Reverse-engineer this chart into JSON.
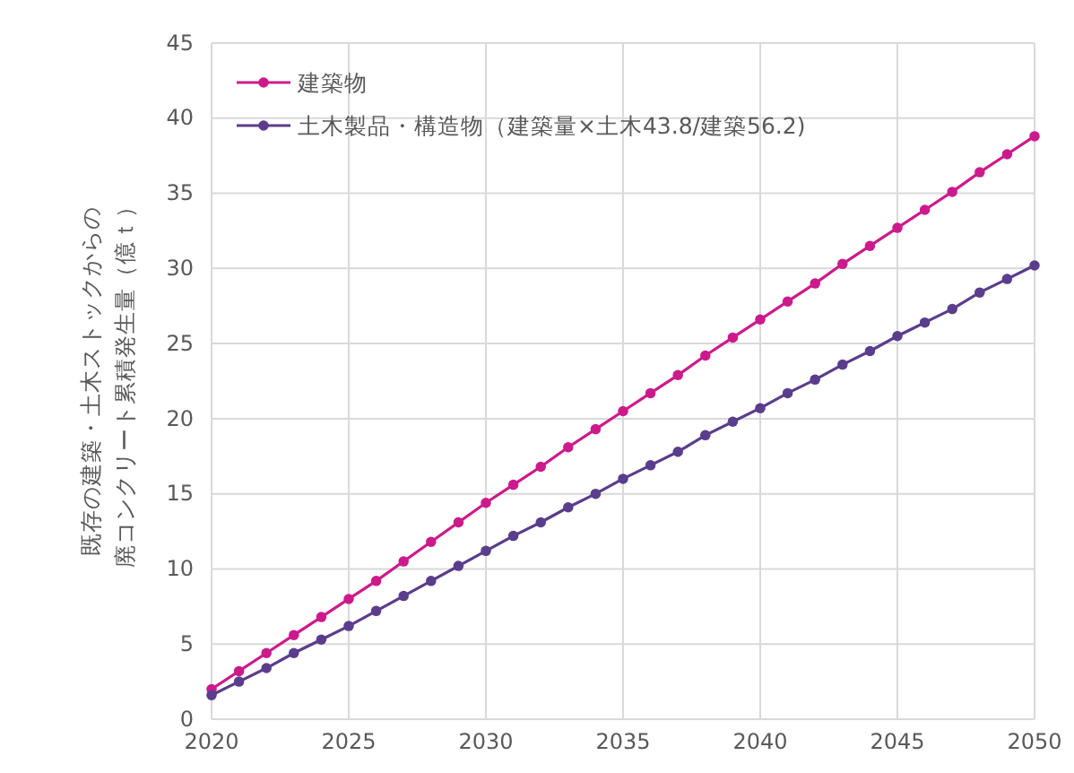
{
  "chart_data": {
    "type": "line",
    "ylabel": "既存の建築・土木ストックからの廃コンクリート累積発生量（億ｔ）",
    "x": [
      2020,
      2021,
      2022,
      2023,
      2024,
      2025,
      2026,
      2027,
      2028,
      2029,
      2030,
      2031,
      2032,
      2033,
      2034,
      2035,
      2036,
      2037,
      2038,
      2039,
      2040,
      2041,
      2042,
      2043,
      2044,
      2045,
      2046,
      2047,
      2048,
      2049,
      2050
    ],
    "series": [
      {
        "name": "建築物",
        "color": "#cc1a8c",
        "values": [
          2.0,
          3.2,
          4.4,
          5.6,
          6.8,
          8.0,
          9.2,
          10.5,
          11.8,
          13.1,
          14.4,
          15.6,
          16.8,
          18.1,
          19.3,
          20.5,
          21.7,
          22.9,
          24.2,
          25.4,
          26.6,
          27.8,
          29.0,
          30.3,
          31.5,
          32.7,
          33.9,
          35.1,
          36.4,
          37.6,
          38.8
        ]
      },
      {
        "name": "土木製品・構造物（建築量×土木43.8/建築56.2)",
        "color": "#5a3d8c",
        "values": [
          1.6,
          2.5,
          3.4,
          4.4,
          5.3,
          6.2,
          7.2,
          8.2,
          9.2,
          10.2,
          11.2,
          12.2,
          13.1,
          14.1,
          15.0,
          16.0,
          16.9,
          17.8,
          18.9,
          19.8,
          20.7,
          21.7,
          22.6,
          23.6,
          24.5,
          25.5,
          26.4,
          27.3,
          28.4,
          29.3,
          30.2
        ]
      }
    ],
    "xlim": [
      2020,
      2050
    ],
    "xticks": [
      2020,
      2025,
      2030,
      2035,
      2040,
      2045,
      2050
    ],
    "ylim": [
      0,
      45
    ],
    "yticks": [
      0,
      5,
      10,
      15,
      20,
      25,
      30,
      35,
      40,
      45
    ],
    "grid": true,
    "legend": "top left",
    "marker": "circle",
    "line_style": "solid"
  }
}
